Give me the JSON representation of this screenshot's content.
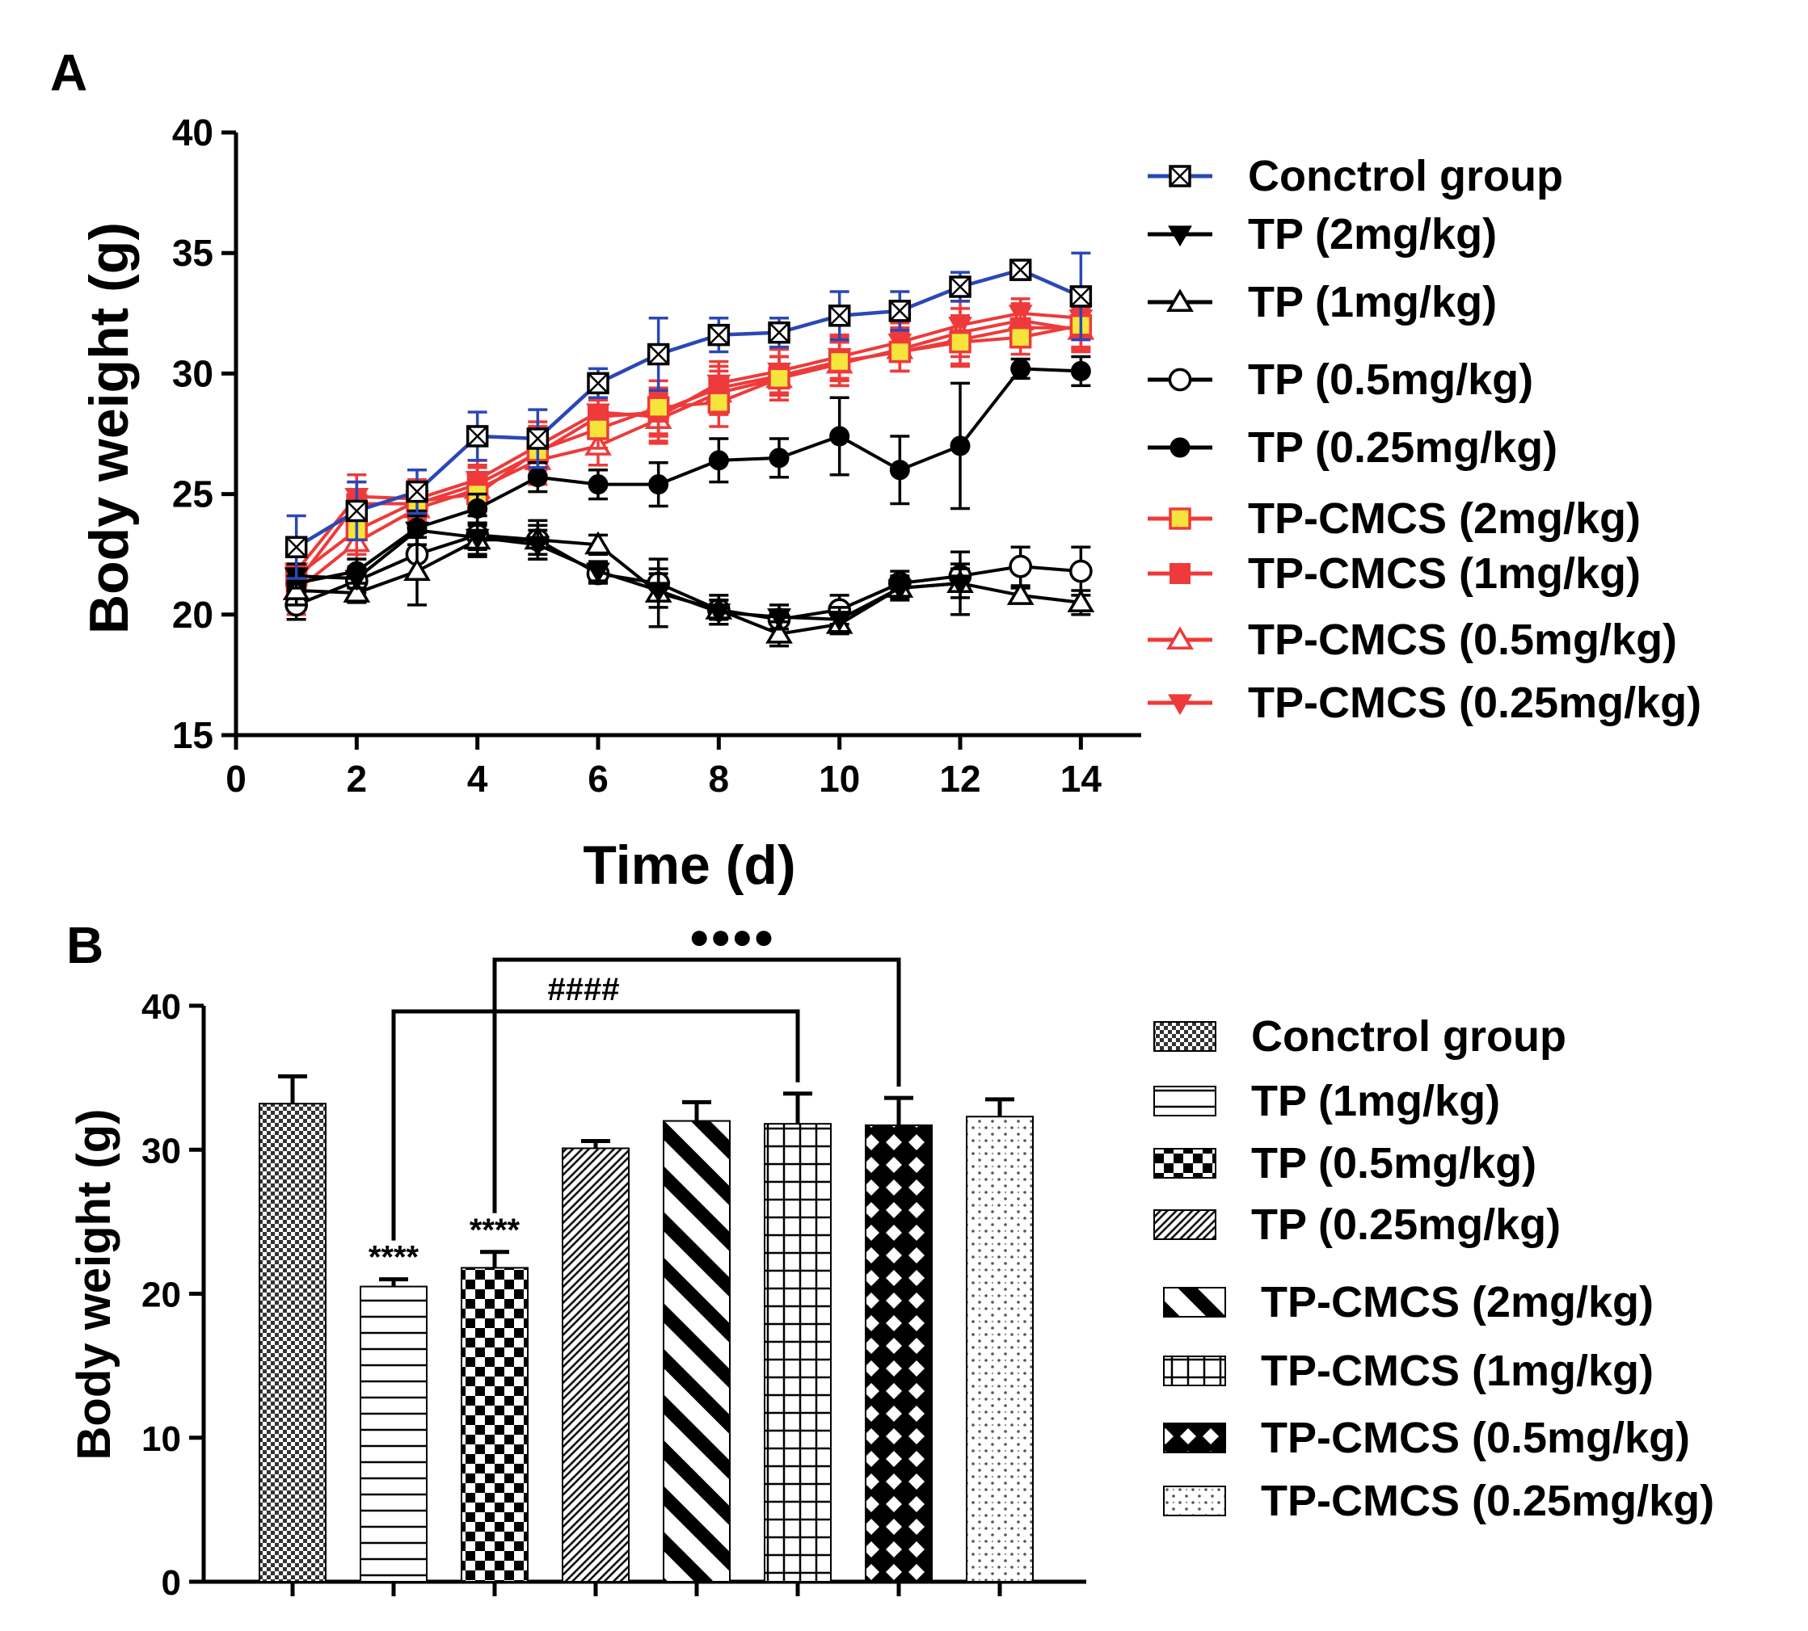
{
  "panel_a": {
    "label": "A"
  },
  "panel_b": {
    "label": "B"
  },
  "colors": {
    "control": "#2a48b5",
    "tp": "#000000",
    "cmcs": "#ee3a3a",
    "cmcs_marker_fill": "#f5e53a"
  },
  "chart_data": [
    {
      "type": "line",
      "title": "",
      "xlabel": "Time (d)",
      "ylabel": "Body weight (g)",
      "xlim": [
        0,
        15
      ],
      "ylim": [
        15,
        40
      ],
      "xticks": [
        "0",
        "2",
        "4",
        "6",
        "8",
        "10",
        "12",
        "14"
      ],
      "yticks": [
        "15",
        "20",
        "25",
        "30",
        "35",
        "40"
      ],
      "x": [
        1,
        2,
        3,
        4,
        5,
        6,
        7,
        8,
        9,
        10,
        11,
        12,
        13,
        14
      ],
      "legend_position": "right",
      "series": [
        {
          "name": "Conctrol group",
          "color": "#2a48b5",
          "marker": "boxx",
          "values": [
            22.8,
            24.3,
            25.1,
            27.4,
            27.3,
            29.6,
            30.8,
            31.6,
            31.7,
            32.4,
            32.6,
            33.6,
            34.3,
            33.2
          ],
          "errors": [
            1.3,
            1.2,
            0.9,
            1.0,
            1.2,
            0.6,
            1.5,
            0.7,
            0.6,
            1.0,
            0.8,
            0.6,
            0.4,
            1.8
          ]
        },
        {
          "name": "TP (2mg/kg)",
          "color": "#000000",
          "marker": "tri-down",
          "values": [
            21.6,
            21.5,
            23.5,
            23.2,
            22.9,
            21.8,
            21.0,
            20.1,
            19.9,
            19.8,
            21.1,
            21.3,
            null,
            null
          ],
          "errors": [
            0.5,
            0.4,
            0.6,
            0.5,
            0.6,
            0.4,
            0.7,
            0.5,
            0.5,
            0.5,
            0.4,
            0.6,
            null,
            null
          ]
        },
        {
          "name": "TP (1mg/kg)",
          "color": "#000000",
          "marker": "tri-up-open",
          "values": [
            21.0,
            20.9,
            21.8,
            23.1,
            23.1,
            22.9,
            20.9,
            20.2,
            19.2,
            19.6,
            21.1,
            21.3,
            20.8,
            20.5
          ],
          "errors": [
            0.6,
            0.4,
            1.4,
            0.7,
            0.8,
            0.4,
            1.4,
            0.6,
            0.5,
            0.4,
            0.5,
            1.3,
            0.3,
            0.5
          ]
        },
        {
          "name": "TP (0.5mg/kg)",
          "color": "#000000",
          "marker": "circle-open",
          "values": [
            20.4,
            21.4,
            22.5,
            23.3,
            23.1,
            21.7,
            21.3,
            20.2,
            19.8,
            20.2,
            21.3,
            21.6,
            22.0,
            21.8
          ],
          "errors": [
            0.6,
            0.5,
            0.9,
            0.8,
            0.6,
            0.4,
            0.6,
            0.4,
            0.4,
            0.6,
            0.5,
            0.5,
            0.8,
            1.0
          ]
        },
        {
          "name": "TP (0.25mg/kg)",
          "color": "#000000",
          "marker": "circle",
          "values": [
            21.3,
            21.8,
            23.6,
            24.4,
            25.7,
            25.4,
            25.4,
            26.4,
            26.5,
            27.4,
            26.0,
            27.0,
            30.2,
            30.1
          ],
          "errors": [
            0.6,
            0.5,
            0.7,
            0.6,
            0.6,
            0.6,
            0.9,
            0.9,
            0.8,
            1.6,
            1.4,
            2.6,
            0.4,
            0.6
          ]
        },
        {
          "name": "TP-CMCS (2mg/kg)",
          "color": "#ee3a3a",
          "marker": "square-yellow",
          "values": [
            21.6,
            23.5,
            24.7,
            25.0,
            26.8,
            27.7,
            28.6,
            28.8,
            29.8,
            30.5,
            30.9,
            31.3,
            31.5,
            32.0
          ],
          "errors": [
            1.0,
            1.0,
            0.8,
            0.9,
            1.0,
            0.8,
            1.1,
            1.0,
            0.9,
            0.8,
            0.8,
            1.0,
            0.7,
            0.9
          ]
        },
        {
          "name": "TP-CMCS (1mg/kg)",
          "color": "#ee3a3a",
          "marker": "square",
          "values": [
            21.3,
            24.6,
            24.6,
            25.4,
            26.7,
            28.2,
            28.4,
            29.4,
            29.9,
            30.5,
            30.9,
            31.4,
            31.9,
            31.9
          ],
          "errors": [
            0.8,
            0.9,
            0.9,
            0.8,
            1.1,
            0.7,
            1.0,
            0.9,
            0.8,
            1.0,
            0.8,
            1.0,
            0.8,
            0.9
          ]
        },
        {
          "name": "TP-CMCS (0.5mg/kg)",
          "color": "#ee3a3a",
          "marker": "tri-up-open",
          "values": [
            21.0,
            23.0,
            24.4,
            25.2,
            26.4,
            27.0,
            28.1,
            29.2,
            29.8,
            30.4,
            31.0,
            31.7,
            32.2,
            31.8
          ],
          "errors": [
            1.0,
            1.0,
            0.9,
            0.9,
            1.0,
            0.8,
            1.0,
            0.9,
            0.9,
            0.9,
            0.9,
            1.0,
            0.7,
            0.9
          ]
        },
        {
          "name": "TP-CMCS (0.25mg/kg)",
          "color": "#ee3a3a",
          "marker": "tri-down",
          "values": [
            21.8,
            24.9,
            24.8,
            25.6,
            27.0,
            28.4,
            28.2,
            29.6,
            30.1,
            30.7,
            31.3,
            32.0,
            32.5,
            32.3
          ],
          "errors": [
            0.9,
            0.9,
            0.8,
            0.8,
            1.0,
            0.8,
            1.0,
            0.9,
            0.9,
            0.9,
            0.8,
            1.0,
            0.6,
            0.8
          ]
        }
      ]
    },
    {
      "type": "bar",
      "title": "",
      "xlabel": "",
      "ylabel": "Body weight (g)",
      "ylim": [
        0,
        40
      ],
      "yticks": [
        "0",
        "10",
        "20",
        "30",
        "40"
      ],
      "categories": [
        "Conctrol group",
        "TP (1mg/kg)",
        "TP (0.5mg/kg)",
        "TP (0.25mg/kg)",
        "TP-CMCS (2mg/kg)",
        "TP-CMCS (1mg/kg)",
        "TP-CMCS (0.5mg/kg)",
        "TP-CMCS (0.25mg/kg)"
      ],
      "values": [
        33.2,
        20.5,
        21.8,
        30.1,
        32.0,
        31.8,
        31.7,
        32.3
      ],
      "errors": [
        1.9,
        0.5,
        1.1,
        0.5,
        1.3,
        2.1,
        1.9,
        1.2
      ],
      "patterns": [
        "checker-fine",
        "hlines",
        "checker-large",
        "diag-fine",
        "diag-bold",
        "grid",
        "xcross",
        "dots"
      ],
      "legend_position": "right",
      "annotations": [
        {
          "text": "****",
          "bar": 1
        },
        {
          "text": "****",
          "bar": 2
        },
        {
          "text": "####",
          "from_bar": 1,
          "to_bar": 5
        },
        {
          "text": "●●●●",
          "from_bar": 2,
          "to_bar": 6
        }
      ]
    }
  ]
}
